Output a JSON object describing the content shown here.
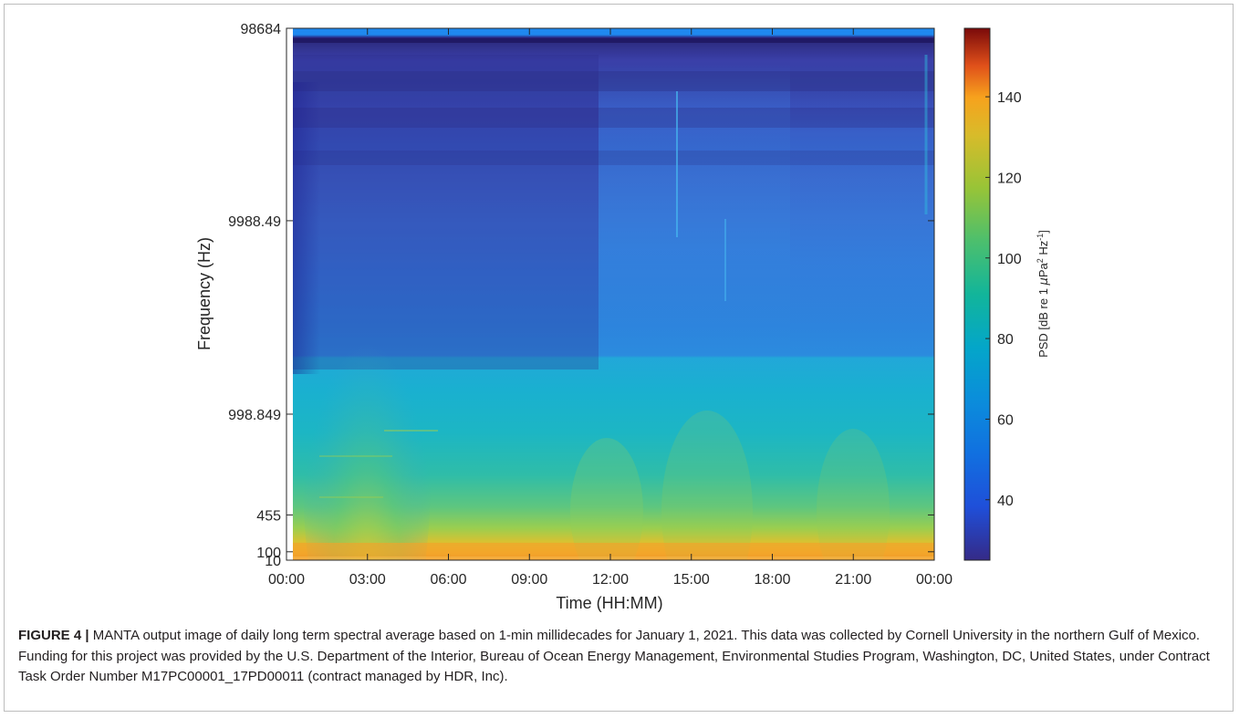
{
  "chart_data": {
    "type": "heatmap",
    "title": "",
    "xlabel": "Time (HH:MM)",
    "ylabel": "Frequency (Hz)",
    "x_ticks": [
      "00:00",
      "03:00",
      "06:00",
      "09:00",
      "12:00",
      "15:00",
      "18:00",
      "21:00",
      "00:00"
    ],
    "y_ticks": [
      "98684",
      "9988.49",
      "998.849",
      "455",
      "100",
      "10"
    ],
    "colorbar": {
      "label": "PSD [dB re 1 μPa² Hz⁻¹]",
      "label_main": "PSD  [dB re 1 ",
      "label_mu": "μ",
      "label_pa": "Pa",
      "label_hz": " Hz",
      "label_close": "]",
      "sup2": "2",
      "sup_neg1": "-1",
      "ticks": [
        "40",
        "60",
        "80",
        "100",
        "120",
        "140"
      ],
      "range": [
        25,
        157
      ],
      "colormap": "parula"
    },
    "z_min_max": [
      25,
      157
    ]
  },
  "caption": {
    "lead": "FIGURE 4 |",
    "text": " MANTA output image of daily long term spectral average based on 1-min millidecades for January 1, 2021. This data was collected by Cornell University in the northern Gulf of Mexico. Funding for this project was provided by the U.S. Department of the Interior, Bureau of Ocean Energy Management, Environmental Studies Program, Washington, DC, United States, under Contract Task Order Number M17PC00001_17PD00011 (contract managed by HDR, Inc)."
  }
}
